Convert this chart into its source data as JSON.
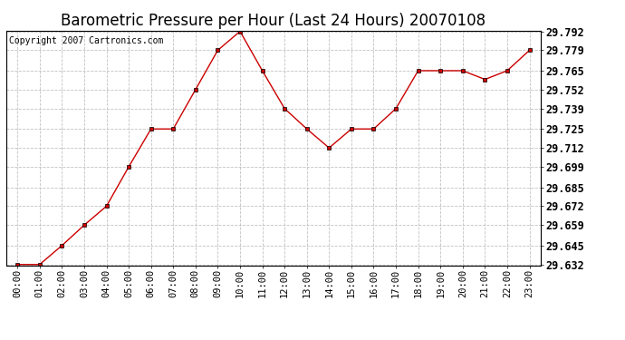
{
  "title": "Barometric Pressure per Hour (Last 24 Hours) 20070108",
  "copyright": "Copyright 2007 Cartronics.com",
  "hours": [
    "00:00",
    "01:00",
    "02:00",
    "03:00",
    "04:00",
    "05:00",
    "06:00",
    "07:00",
    "08:00",
    "09:00",
    "10:00",
    "11:00",
    "12:00",
    "13:00",
    "14:00",
    "15:00",
    "16:00",
    "17:00",
    "18:00",
    "19:00",
    "20:00",
    "21:00",
    "22:00",
    "23:00"
  ],
  "values": [
    29.632,
    29.632,
    29.645,
    29.659,
    29.672,
    29.699,
    29.725,
    29.725,
    29.752,
    29.779,
    29.792,
    29.765,
    29.739,
    29.725,
    29.712,
    29.725,
    29.725,
    29.739,
    29.765,
    29.765,
    29.765,
    29.759,
    29.765,
    29.779
  ],
  "ylim_min": 29.632,
  "ylim_max": 29.792,
  "yticks": [
    29.632,
    29.645,
    29.659,
    29.672,
    29.685,
    29.699,
    29.712,
    29.725,
    29.739,
    29.752,
    29.765,
    29.779,
    29.792
  ],
  "line_color": "#cc0000",
  "marker_color": "#000000",
  "bg_color": "#ffffff",
  "grid_color": "#bbbbbb",
  "title_fontsize": 12,
  "copyright_fontsize": 7,
  "tick_label_fontsize": 7.5,
  "ytick_fontsize": 8.5
}
